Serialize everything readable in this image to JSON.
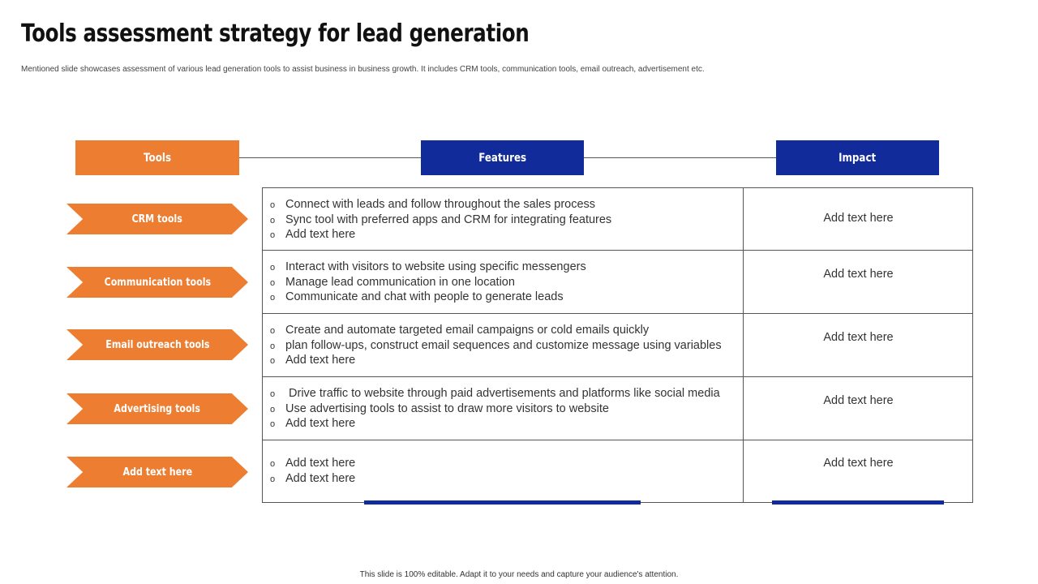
{
  "title": "Tools assessment strategy for lead generation",
  "subtitle": "Mentioned slide showcases assessment of various lead generation tools to assist business in business growth. It includes CRM  tools, communication tools, email outreach, advertisement etc.",
  "headers": {
    "tools": "Tools",
    "features": "Features",
    "impact": "Impact"
  },
  "bullet_symbol": "o",
  "rows": [
    {
      "tool": "CRM tools",
      "features": [
        "Connect with leads and follow throughout the sales process",
        "Sync tool with preferred apps and CRM for integrating features",
        "Add text here"
      ],
      "impact": "Add text here"
    },
    {
      "tool": "Communication tools",
      "features": [
        "Interact with visitors to website using specific messengers",
        "Manage lead communication in one location",
        "Communicate and chat with people to generate leads"
      ],
      "impact": "Add text here"
    },
    {
      "tool": "Email outreach tools",
      "features": [
        "Create and automate targeted email campaigns or cold emails quickly",
        "plan follow-ups, construct email sequences and customize message using variables",
        "Add text here"
      ],
      "impact": "Add text here"
    },
    {
      "tool": "Advertising tools",
      "features": [
        " Drive traffic to website through paid advertisements and platforms like social media",
        "Use advertising tools to assist to draw more visitors to website",
        "Add text here"
      ],
      "impact": "Add text here"
    },
    {
      "tool": "Add text here",
      "features": [
        "Add text here",
        "Add text here"
      ],
      "impact": "Add text here"
    }
  ],
  "footer": "This slide is 100% editable. Adapt it to your needs and capture your audience's attention.",
  "colors": {
    "orange": "#ED7D31",
    "blue": "#122B9B"
  }
}
